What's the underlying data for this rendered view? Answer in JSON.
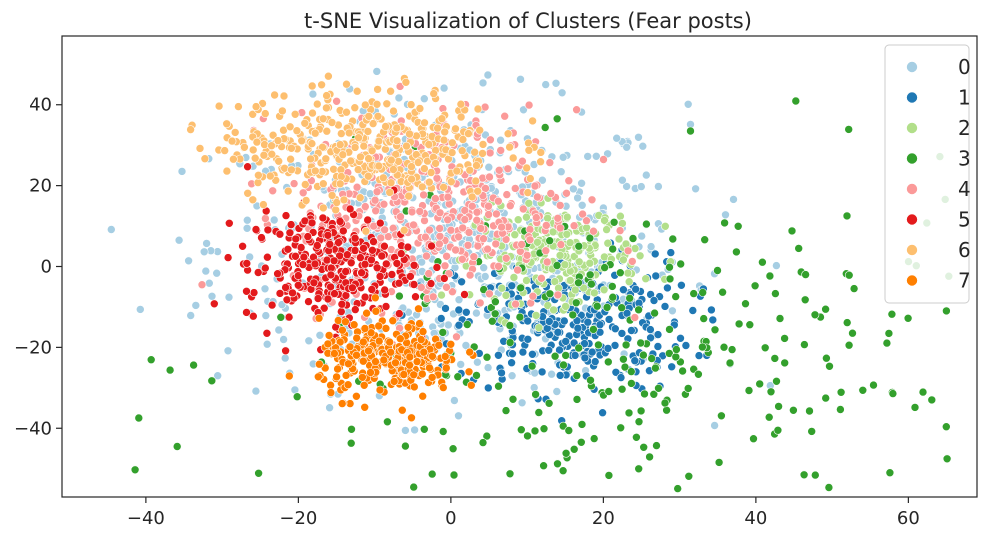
{
  "chart_data": {
    "type": "scatter",
    "title": "t-SNE Visualization of Clusters (Fear posts)",
    "xlabel": "",
    "ylabel": "",
    "xlim": [
      -51,
      69
    ],
    "ylim": [
      -57,
      57
    ],
    "x_ticks": [
      -40,
      -20,
      0,
      20,
      40,
      60
    ],
    "y_ticks": [
      -40,
      -20,
      0,
      20,
      40
    ],
    "x_tick_labels": [
      "−40",
      "−20",
      "0",
      "20",
      "40",
      "60"
    ],
    "y_tick_labels": [
      "−40",
      "−20",
      "0",
      "20",
      "40"
    ],
    "grid": false,
    "legend_position": "top-right",
    "series": [
      {
        "name": "0",
        "color": "#a6cee3",
        "centroid": [
          0,
          5
        ],
        "spread": [
          40,
          45
        ],
        "approx_count": 650
      },
      {
        "name": "1",
        "color": "#1f78b4",
        "centroid": [
          16,
          -14
        ],
        "spread": [
          20,
          22
        ],
        "approx_count": 300
      },
      {
        "name": "2",
        "color": "#b2df8a",
        "centroid": [
          14,
          3
        ],
        "spread": [
          14,
          15
        ],
        "approx_count": 230
      },
      {
        "name": "3",
        "color": "#33a02c",
        "centroid": [
          24,
          -24
        ],
        "spread": [
          64,
          58
        ],
        "approx_count": 330
      },
      {
        "name": "4",
        "color": "#fb9a99",
        "centroid": [
          -2,
          14
        ],
        "spread": [
          24,
          32
        ],
        "approx_count": 420
      },
      {
        "name": "5",
        "color": "#e31a1c",
        "centroid": [
          -16,
          0
        ],
        "spread": [
          14,
          18
        ],
        "approx_count": 300
      },
      {
        "name": "6",
        "color": "#fdbf6f",
        "centroid": [
          -12,
          30
        ],
        "spread": [
          24,
          18
        ],
        "approx_count": 420
      },
      {
        "name": "7",
        "color": "#ff7f00",
        "centroid": [
          -8,
          -23
        ],
        "spread": [
          12,
          12
        ],
        "approx_count": 290
      }
    ]
  }
}
